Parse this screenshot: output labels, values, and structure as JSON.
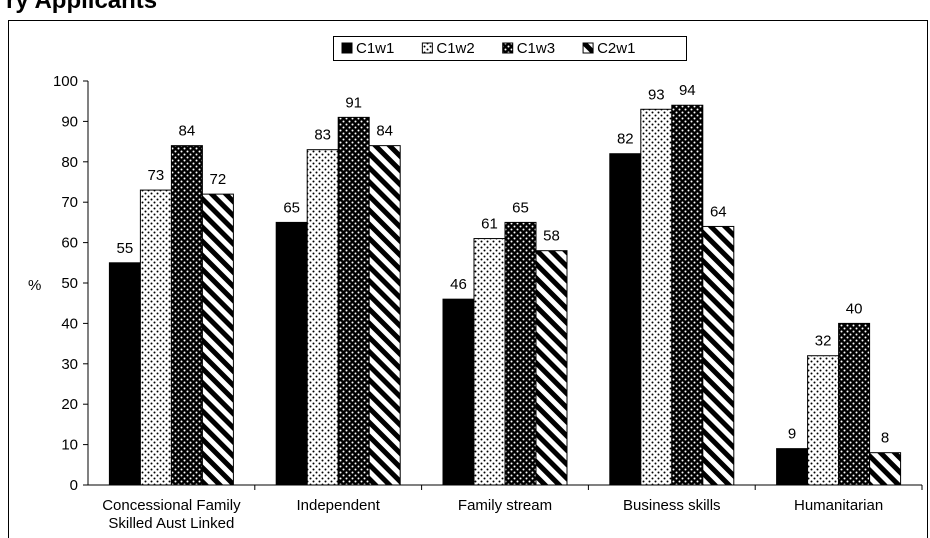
{
  "chart_data": {
    "type": "bar",
    "title": "ry Applicants",
    "ylabel": "%",
    "categories": [
      "Concessional Family Skilled Aust Linked",
      "Independent",
      "Family stream",
      "Business skills",
      "Humanitarian"
    ],
    "series": [
      {
        "name": "C1w1",
        "color": "#000000",
        "pattern": "solid",
        "values": [
          55,
          65,
          46,
          82,
          9
        ]
      },
      {
        "name": "C1w2",
        "color": "#000000",
        "pattern": "dots",
        "values": [
          73,
          83,
          61,
          93,
          32
        ]
      },
      {
        "name": "C1w3",
        "color": "#000000",
        "pattern": "inverse-dots",
        "values": [
          84,
          91,
          65,
          94,
          40
        ]
      },
      {
        "name": "C2w1",
        "color": "#000000",
        "pattern": "stripes",
        "values": [
          72,
          84,
          58,
          64,
          8
        ]
      }
    ],
    "ylim": [
      0,
      100
    ],
    "yticks": [
      0,
      10,
      20,
      30,
      40,
      50,
      60,
      70,
      80,
      90,
      100
    ],
    "grid": false,
    "legend": "top"
  }
}
